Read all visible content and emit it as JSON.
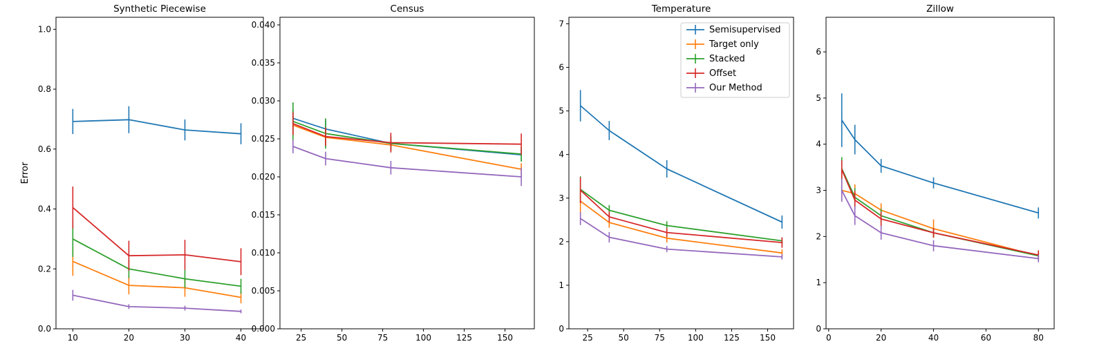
{
  "chart_data": [
    {
      "type": "line",
      "title": "Synthetic Piecewise",
      "xlabel": "",
      "ylabel": "Error",
      "xlim": [
        7,
        44
      ],
      "ylim": [
        0,
        1.04
      ],
      "xticks": [
        10,
        20,
        30,
        40
      ],
      "yticks": [
        0.0,
        0.2,
        0.4,
        0.6,
        0.8,
        1.0
      ],
      "ytick_labels": [
        "0.0",
        "0.2",
        "0.4",
        "0.6",
        "0.8",
        "1.0"
      ],
      "x": [
        10,
        20,
        30,
        40
      ],
      "series": [
        {
          "name": "Semisupervised",
          "color": "#1f77b4",
          "values": [
            0.692,
            0.698,
            0.664,
            0.651
          ],
          "err": [
            0.042,
            0.045,
            0.035,
            0.035
          ]
        },
        {
          "name": "Target only",
          "color": "#ff7f0e",
          "values": [
            0.225,
            0.145,
            0.137,
            0.105
          ],
          "err": [
            0.048,
            0.03,
            0.03,
            0.02
          ]
        },
        {
          "name": "Stacked",
          "color": "#2ca02c",
          "values": [
            0.3,
            0.2,
            0.167,
            0.142
          ],
          "err": [
            0.06,
            0.03,
            0.03,
            0.025
          ]
        },
        {
          "name": "Offset",
          "color": "#d62728",
          "values": [
            0.405,
            0.244,
            0.247,
            0.224
          ],
          "err": [
            0.07,
            0.05,
            0.05,
            0.045
          ]
        },
        {
          "name": "Our Method",
          "color": "#9467bd",
          "values": [
            0.112,
            0.074,
            0.069,
            0.058
          ],
          "err": [
            0.018,
            0.008,
            0.008,
            0.006
          ]
        }
      ]
    },
    {
      "type": "line",
      "title": "Census",
      "xlabel": "",
      "ylabel": "",
      "xlim": [
        12,
        168
      ],
      "ylim": [
        0,
        0.041
      ],
      "xticks": [
        25,
        50,
        75,
        100,
        125,
        150
      ],
      "yticks": [
        0.0,
        0.005,
        0.01,
        0.015,
        0.02,
        0.025,
        0.03,
        0.035,
        0.04
      ],
      "ytick_labels": [
        "0.000",
        "0.005",
        "0.010",
        "0.015",
        "0.020",
        "0.025",
        "0.030",
        "0.035",
        "0.040"
      ],
      "x": [
        20,
        40,
        80,
        160
      ],
      "series": [
        {
          "name": "Semisupervised",
          "color": "#1f77b4",
          "values": [
            0.0277,
            0.0263,
            0.0244,
            0.0229
          ],
          "err": [
            0.0012,
            0.0012,
            0.0008,
            0.0008
          ]
        },
        {
          "name": "Target only",
          "color": "#ff7f0e",
          "values": [
            0.0268,
            0.0252,
            0.0242,
            0.021
          ],
          "err": [
            0.0012,
            0.0012,
            0.0008,
            0.0008
          ]
        },
        {
          "name": "Stacked",
          "color": "#2ca02c",
          "values": [
            0.0273,
            0.0257,
            0.0244,
            0.023
          ],
          "err": [
            0.0025,
            0.002,
            0.001,
            0.001
          ]
        },
        {
          "name": "Offset",
          "color": "#d62728",
          "values": [
            0.027,
            0.0253,
            0.0245,
            0.0243
          ],
          "err": [
            0.0015,
            0.0012,
            0.0013,
            0.0014
          ]
        },
        {
          "name": "Our Method",
          "color": "#9467bd",
          "values": [
            0.024,
            0.0224,
            0.0212,
            0.02
          ],
          "err": [
            0.0009,
            0.0009,
            0.0009,
            0.0012
          ]
        }
      ]
    },
    {
      "type": "line",
      "title": "Temperature",
      "xlabel": "",
      "ylabel": "",
      "xlim": [
        12,
        168
      ],
      "ylim": [
        0,
        7.15
      ],
      "xticks": [
        25,
        50,
        75,
        100,
        125,
        150
      ],
      "yticks": [
        0,
        1,
        2,
        3,
        4,
        5,
        6,
        7
      ],
      "ytick_labels": [
        "0",
        "1",
        "2",
        "3",
        "4",
        "5",
        "6",
        "7"
      ],
      "x": [
        20,
        40,
        80,
        160
      ],
      "legend": "top-right",
      "series": [
        {
          "name": "Semisupervised",
          "color": "#1f77b4",
          "values": [
            5.12,
            4.55,
            3.67,
            2.45
          ],
          "err": [
            0.36,
            0.22,
            0.2,
            0.15
          ]
        },
        {
          "name": "Target only",
          "color": "#ff7f0e",
          "values": [
            2.93,
            2.44,
            2.08,
            1.74
          ],
          "err": [
            0.3,
            0.12,
            0.1,
            0.08
          ]
        },
        {
          "name": "Stacked",
          "color": "#2ca02c",
          "values": [
            3.2,
            2.72,
            2.37,
            2.02
          ],
          "err": [
            0.3,
            0.12,
            0.1,
            0.08
          ]
        },
        {
          "name": "Offset",
          "color": "#d62728",
          "values": [
            3.18,
            2.57,
            2.21,
            1.98
          ],
          "err": [
            0.3,
            0.12,
            0.1,
            0.12
          ]
        },
        {
          "name": "Our Method",
          "color": "#9467bd",
          "values": [
            2.53,
            2.1,
            1.83,
            1.65
          ],
          "err": [
            0.15,
            0.12,
            0.07,
            0.06
          ]
        }
      ]
    },
    {
      "type": "line",
      "title": "Zillow",
      "xlabel": "",
      "ylabel": "",
      "xlim": [
        -1,
        86
      ],
      "ylim": [
        0,
        6.75
      ],
      "xticks": [
        0,
        20,
        40,
        60,
        80
      ],
      "yticks": [
        0,
        1,
        2,
        3,
        4,
        5,
        6
      ],
      "ytick_labels": [
        "0",
        "1",
        "2",
        "3",
        "4",
        "5",
        "6"
      ],
      "x": [
        5,
        10,
        20,
        40,
        80
      ],
      "series": [
        {
          "name": "Semisupervised",
          "color": "#1f77b4",
          "values": [
            4.52,
            4.1,
            3.53,
            3.16,
            2.51
          ],
          "err": [
            0.58,
            0.32,
            0.15,
            0.12,
            0.12
          ]
        },
        {
          "name": "Target only",
          "color": "#ff7f0e",
          "values": [
            3.0,
            2.93,
            2.57,
            2.17,
            1.58
          ],
          "err": [
            0.2,
            0.2,
            0.15,
            0.2,
            0.1
          ]
        },
        {
          "name": "Stacked",
          "color": "#2ca02c",
          "values": [
            3.47,
            2.85,
            2.45,
            2.08,
            1.58
          ],
          "err": [
            0.25,
            0.2,
            0.15,
            0.1,
            0.1
          ]
        },
        {
          "name": "Offset",
          "color": "#d62728",
          "values": [
            3.45,
            2.79,
            2.38,
            2.08,
            1.6
          ],
          "err": [
            0.2,
            0.2,
            0.15,
            0.1,
            0.1
          ]
        },
        {
          "name": "Our Method",
          "color": "#9467bd",
          "values": [
            3.0,
            2.45,
            2.08,
            1.8,
            1.52
          ],
          "err": [
            0.25,
            0.2,
            0.15,
            0.12,
            0.08
          ]
        }
      ]
    }
  ]
}
